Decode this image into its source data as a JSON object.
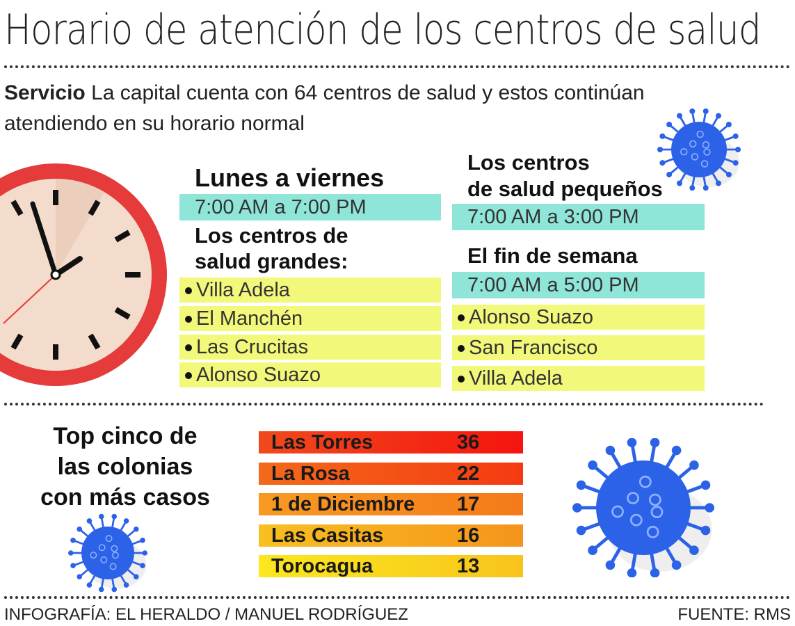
{
  "title": "Horario de atención de los centros de salud",
  "subtitle": {
    "lead": "Servicio",
    "text": " La capital cuenta con 64 centros de  salud y estos continúan atendiendo en su horario normal"
  },
  "weekdays": {
    "heading": "Lunes a viernes",
    "hours": "7:00 AM a 7:00 PM",
    "large_centers_heading_1": "Los centros de",
    "large_centers_heading_2": "salud grandes:",
    "large_centers": [
      "Villa Adela",
      "El Manchén",
      "Las Crucitas",
      "Alonso Suazo"
    ]
  },
  "small_centers": {
    "heading_1": "Los centros",
    "heading_2": "de salud pequeños",
    "hours": "7:00 AM a 3:00 PM"
  },
  "weekend": {
    "heading": "El fin de semana",
    "hours": "7:00 AM a 5:00 PM",
    "centers": [
      "Alonso Suazo",
      "San Francisco",
      "Villa Adela"
    ]
  },
  "top5": {
    "heading_lines": [
      "Top cinco de",
      "las colonias",
      "con más casos"
    ],
    "rows": [
      {
        "name": "Las Torres",
        "cases": "36",
        "color_from": "#f04a1c",
        "color_to": "#f5140f"
      },
      {
        "name": "La Rosa",
        "cases": "22",
        "color_from": "#f36a1a",
        "color_to": "#f53a12"
      },
      {
        "name": "1 de Diciembre",
        "cases": "17",
        "color_from": "#f79a22",
        "color_to": "#f57a1a"
      },
      {
        "name": "Las Casitas",
        "cases": "16",
        "color_from": "#f8c020",
        "color_to": "#f5941c"
      },
      {
        "name": "Torocagua",
        "cases": "13",
        "color_from": "#fbe81e",
        "color_to": "#f8c41c"
      }
    ]
  },
  "footer": {
    "credit": "INFOGRAFÍA: EL HERALDO / MANUEL RODRÍGUEZ",
    "source": "FUENTE: RMS"
  },
  "colors": {
    "clock_rim": "#e53b3b",
    "clock_face": "#f3dccb",
    "cyan_band": "#8fe6d8",
    "yellow_band": "#f2f97a",
    "virus": "#2c62e8"
  },
  "icons": [
    "clock-icon",
    "virus-icon"
  ]
}
